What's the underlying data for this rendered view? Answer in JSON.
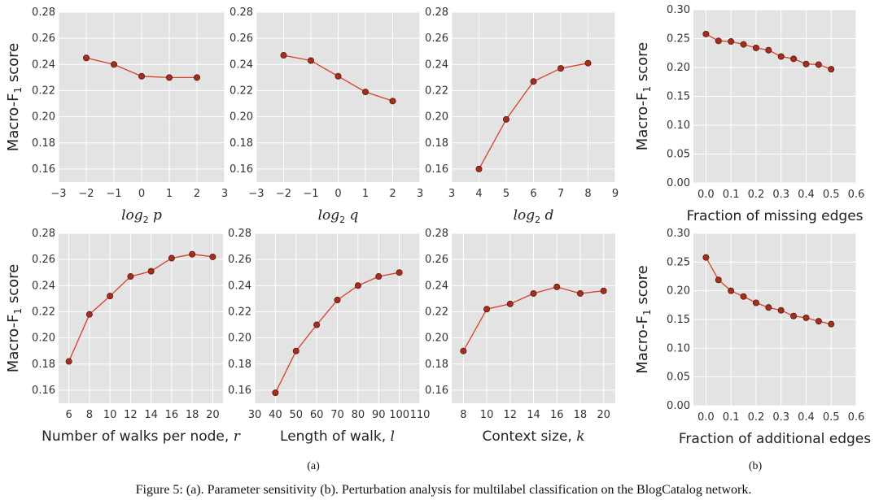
{
  "caption": "Figure 5: (a). Parameter sensitivity (b). Perturbation analysis for multilabel classification on the BlogCatalog network.",
  "label_a": "(a)",
  "label_b": "(b)",
  "colors": {
    "line": "#d7402a",
    "marker_fill": "#a3301f",
    "marker_edge": "#5a140c",
    "panel": "#e3e3e3",
    "grid": "#ffffff"
  },
  "chart_data": [
    {
      "type": "line",
      "ylabel": "Macro-F1 score",
      "xlabel": "log2 p",
      "x": [
        -2,
        -1,
        0,
        1,
        2
      ],
      "series": [
        {
          "values": [
            0.245,
            0.24,
            0.231,
            0.23,
            0.23
          ]
        }
      ],
      "xlim": [
        -3,
        3
      ],
      "ylim": [
        0.15,
        0.28
      ],
      "xticks": [
        "−3",
        "−2",
        "−1",
        "0",
        "1",
        "2",
        "3"
      ],
      "yticks": [
        "0.16",
        "0.18",
        "0.20",
        "0.22",
        "0.24",
        "0.26",
        "0.28"
      ],
      "grid": true
    },
    {
      "type": "line",
      "xlabel": "log2 q",
      "x": [
        -2,
        -1,
        0,
        1,
        2
      ],
      "series": [
        {
          "values": [
            0.247,
            0.243,
            0.231,
            0.219,
            0.212
          ]
        }
      ],
      "xlim": [
        -3,
        3
      ],
      "ylim": [
        0.15,
        0.28
      ],
      "xticks": [
        "−3",
        "−2",
        "−1",
        "0",
        "1",
        "2",
        "3"
      ],
      "yticks": [
        "0.16",
        "0.18",
        "0.20",
        "0.22",
        "0.24",
        "0.26",
        "0.28"
      ],
      "grid": true
    },
    {
      "type": "line",
      "xlabel": "log2 d",
      "x": [
        4,
        5,
        6,
        7,
        8
      ],
      "series": [
        {
          "values": [
            0.16,
            0.198,
            0.227,
            0.237,
            0.241
          ]
        }
      ],
      "xlim": [
        3,
        9
      ],
      "ylim": [
        0.15,
        0.28
      ],
      "xticks": [
        "3",
        "4",
        "5",
        "6",
        "7",
        "8",
        "9"
      ],
      "yticks": [
        "0.16",
        "0.18",
        "0.20",
        "0.22",
        "0.24",
        "0.26",
        "0.28"
      ],
      "grid": true
    },
    {
      "type": "line",
      "ylabel": "Macro-F1 score",
      "xlabel": "Fraction of missing edges",
      "x": [
        0.0,
        0.05,
        0.1,
        0.15,
        0.2,
        0.25,
        0.3,
        0.35,
        0.4,
        0.45,
        0.5
      ],
      "series": [
        {
          "values": [
            0.258,
            0.246,
            0.245,
            0.24,
            0.234,
            0.23,
            0.219,
            0.215,
            0.206,
            0.205,
            0.197
          ]
        }
      ],
      "xlim": [
        -0.05,
        0.6
      ],
      "ylim": [
        0.0,
        0.3
      ],
      "xticks": [
        "0.0",
        "0.1",
        "0.2",
        "0.3",
        "0.4",
        "0.5",
        "0.6"
      ],
      "yticks": [
        "0.00",
        "0.05",
        "0.10",
        "0.15",
        "0.20",
        "0.25",
        "0.30"
      ],
      "grid": true
    },
    {
      "type": "line",
      "ylabel": "Macro-F1 score",
      "xlabel": "Number of walks per node, r",
      "x": [
        6,
        8,
        10,
        12,
        14,
        16,
        18,
        20
      ],
      "series": [
        {
          "values": [
            0.182,
            0.218,
            0.232,
            0.247,
            0.251,
            0.261,
            0.264,
            0.262
          ]
        }
      ],
      "xlim": [
        5,
        21
      ],
      "ylim": [
        0.15,
        0.28
      ],
      "xticks": [
        "6",
        "8",
        "10",
        "12",
        "14",
        "16",
        "18",
        "20"
      ],
      "yticks": [
        "0.16",
        "0.18",
        "0.20",
        "0.22",
        "0.24",
        "0.26",
        "0.28"
      ],
      "grid": true
    },
    {
      "type": "line",
      "xlabel": "Length of walk, l",
      "x": [
        40,
        50,
        60,
        70,
        80,
        90,
        100
      ],
      "series": [
        {
          "values": [
            0.158,
            0.19,
            0.21,
            0.229,
            0.24,
            0.247,
            0.25
          ]
        }
      ],
      "xlim": [
        30,
        110
      ],
      "ylim": [
        0.15,
        0.28
      ],
      "xticks": [
        "30",
        "40",
        "50",
        "60",
        "70",
        "80",
        "90",
        "100",
        "110"
      ],
      "yticks": [
        "0.16",
        "0.18",
        "0.20",
        "0.22",
        "0.24",
        "0.26",
        "0.28"
      ],
      "grid": true
    },
    {
      "type": "line",
      "xlabel": "Context size, k",
      "x": [
        8,
        10,
        12,
        14,
        16,
        18,
        20
      ],
      "series": [
        {
          "values": [
            0.19,
            0.222,
            0.226,
            0.234,
            0.239,
            0.234,
            0.236
          ]
        }
      ],
      "xlim": [
        7,
        21
      ],
      "ylim": [
        0.15,
        0.28
      ],
      "xticks": [
        "8",
        "10",
        "12",
        "14",
        "16",
        "18",
        "20"
      ],
      "yticks": [
        "0.16",
        "0.18",
        "0.20",
        "0.22",
        "0.24",
        "0.26",
        "0.28"
      ],
      "grid": true
    },
    {
      "type": "line",
      "ylabel": "Macro-F1 score",
      "xlabel": "Fraction of additional edges",
      "x": [
        0.0,
        0.05,
        0.1,
        0.15,
        0.2,
        0.25,
        0.3,
        0.35,
        0.4,
        0.45,
        0.5
      ],
      "series": [
        {
          "values": [
            0.258,
            0.219,
            0.2,
            0.19,
            0.179,
            0.171,
            0.166,
            0.156,
            0.153,
            0.147,
            0.142
          ]
        }
      ],
      "xlim": [
        -0.05,
        0.6
      ],
      "ylim": [
        0.0,
        0.3
      ],
      "xticks": [
        "0.0",
        "0.1",
        "0.2",
        "0.3",
        "0.4",
        "0.5",
        "0.6"
      ],
      "yticks": [
        "0.00",
        "0.05",
        "0.10",
        "0.15",
        "0.20",
        "0.25",
        "0.30"
      ],
      "grid": true
    }
  ]
}
